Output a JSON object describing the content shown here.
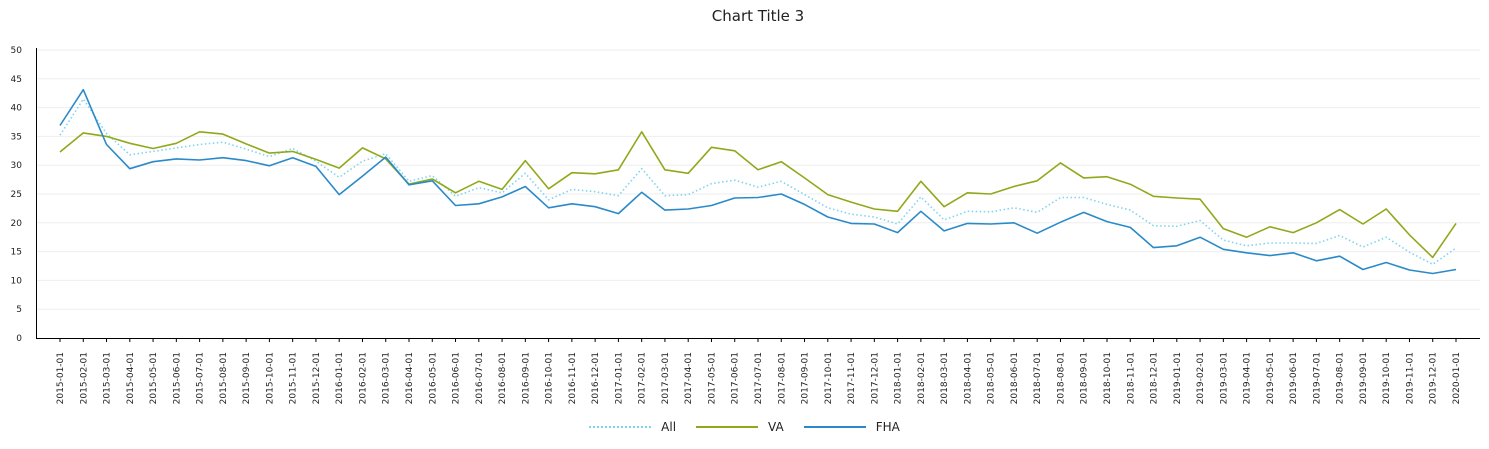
{
  "chart_data": {
    "type": "line",
    "title": "Chart Title 3",
    "xlabel": "",
    "ylabel": "",
    "ylim": [
      0,
      50
    ],
    "yticks": [
      0,
      5,
      10,
      15,
      20,
      25,
      30,
      35,
      40,
      45,
      50
    ],
    "grid": "horizontal",
    "legend": "bottom-center",
    "x": [
      "2015-01-01",
      "2015-02-01",
      "2015-03-01",
      "2015-04-01",
      "2015-05-01",
      "2015-06-01",
      "2015-07-01",
      "2015-08-01",
      "2015-09-01",
      "2015-10-01",
      "2015-11-01",
      "2015-12-01",
      "2016-01-01",
      "2016-02-01",
      "2016-03-01",
      "2016-04-01",
      "2016-05-01",
      "2016-06-01",
      "2016-07-01",
      "2016-08-01",
      "2016-09-01",
      "2016-10-01",
      "2016-11-01",
      "2016-12-01",
      "2017-01-01",
      "2017-02-01",
      "2017-03-01",
      "2017-04-01",
      "2017-05-01",
      "2017-06-01",
      "2017-07-01",
      "2017-08-01",
      "2017-09-01",
      "2017-10-01",
      "2017-11-01",
      "2017-12-01",
      "2018-01-01",
      "2018-02-01",
      "2018-03-01",
      "2018-04-01",
      "2018-05-01",
      "2018-06-01",
      "2018-07-01",
      "2018-08-01",
      "2018-09-01",
      "2018-10-01",
      "2018-11-01",
      "2018-12-01",
      "2019-01-01",
      "2019-02-01",
      "2019-03-01",
      "2019-04-01",
      "2019-05-01",
      "2019-06-01",
      "2019-07-01",
      "2019-08-01",
      "2019-09-01",
      "2019-10-01",
      "2019-11-01",
      "2019-12-01",
      "2020-01-01"
    ],
    "series": [
      {
        "name": "All",
        "color": "#7fd4f0",
        "style": "dotted",
        "values": [
          35.2,
          41.5,
          35.5,
          31.8,
          32.4,
          33.0,
          33.6,
          34.0,
          32.8,
          31.5,
          32.9,
          30.7,
          27.9,
          30.7,
          32.0,
          27.2,
          28.2,
          24.6,
          26.1,
          25.2,
          28.6,
          24.0,
          25.8,
          25.4,
          24.7,
          29.4,
          24.7,
          24.9,
          26.8,
          27.4,
          26.2,
          27.2,
          24.9,
          22.6,
          21.5,
          21.0,
          19.8,
          24.5,
          20.5,
          22.0,
          21.9,
          22.6,
          21.8,
          24.4,
          24.4,
          23.2,
          22.2,
          19.5,
          19.4,
          20.4,
          17.0,
          16.0,
          16.5,
          16.5,
          16.4,
          17.8,
          15.8,
          17.5,
          14.9,
          12.8,
          15.6
        ]
      },
      {
        "name": "VA",
        "color": "#8fa91b",
        "style": "solid",
        "values": [
          32.3,
          35.6,
          35.0,
          33.8,
          32.9,
          33.8,
          35.8,
          35.4,
          33.7,
          32.1,
          32.4,
          31.0,
          29.5,
          33.0,
          31.1,
          26.7,
          27.6,
          25.2,
          27.2,
          25.8,
          30.8,
          25.9,
          28.7,
          28.5,
          29.2,
          35.8,
          29.2,
          28.6,
          33.1,
          32.5,
          29.2,
          30.6,
          27.8,
          24.9,
          23.6,
          22.4,
          22.0,
          27.2,
          22.8,
          25.2,
          25.0,
          26.3,
          27.3,
          30.4,
          27.8,
          28.0,
          26.7,
          24.6,
          24.3,
          24.1,
          19.0,
          17.5,
          19.3,
          18.3,
          20.0,
          22.3,
          19.8,
          22.4,
          17.9,
          14.0,
          19.9
        ]
      },
      {
        "name": "FHA",
        "color": "#2a8ac9",
        "style": "solid",
        "values": [
          36.9,
          43.1,
          33.6,
          29.4,
          30.6,
          31.1,
          30.9,
          31.3,
          30.8,
          29.9,
          31.3,
          29.8,
          24.9,
          28.1,
          31.4,
          26.6,
          27.3,
          23.0,
          23.3,
          24.5,
          26.3,
          22.6,
          23.3,
          22.8,
          21.6,
          25.3,
          22.2,
          22.4,
          23.0,
          24.3,
          24.4,
          25.0,
          23.2,
          21.0,
          19.9,
          19.8,
          18.3,
          22.0,
          18.6,
          19.9,
          19.8,
          20.0,
          18.2,
          20.1,
          21.8,
          20.2,
          19.2,
          15.7,
          16.0,
          17.5,
          15.4,
          14.8,
          14.3,
          14.8,
          13.4,
          14.2,
          11.9,
          13.1,
          11.8,
          11.2,
          11.9
        ]
      }
    ]
  }
}
